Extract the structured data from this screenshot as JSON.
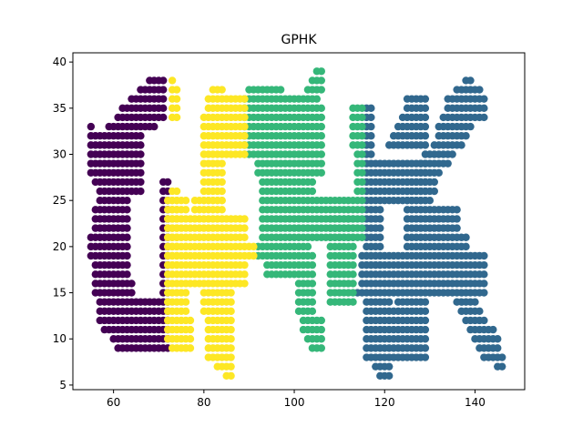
{
  "chart_data": {
    "type": "scatter",
    "title": "GPHK",
    "xlabel": "",
    "ylabel": "",
    "xlim": [
      51,
      151
    ],
    "ylim": [
      4.5,
      41
    ],
    "xticks": [
      60,
      80,
      100,
      120,
      140
    ],
    "yticks": [
      5,
      10,
      15,
      20,
      25,
      30,
      35,
      40
    ],
    "grid": false,
    "series": [
      {
        "color": "#440154",
        "rects": [
          [
            68,
            71,
            38,
            38
          ],
          [
            66,
            71,
            37,
            37
          ],
          [
            64,
            71,
            36,
            36
          ],
          [
            62,
            71,
            35,
            35
          ],
          [
            61,
            71,
            34,
            34
          ],
          [
            59,
            69,
            33,
            33
          ],
          [
            55,
            55,
            33,
            33
          ],
          [
            55,
            66,
            28,
            32
          ],
          [
            56,
            66,
            27,
            27
          ],
          [
            57,
            66,
            26,
            26
          ],
          [
            57,
            63,
            25,
            25
          ],
          [
            56,
            63,
            22,
            24
          ],
          [
            55,
            63,
            19,
            21
          ],
          [
            56,
            63,
            17,
            18
          ],
          [
            56,
            64,
            15,
            16
          ],
          [
            57,
            72,
            13,
            14
          ],
          [
            57,
            72,
            12,
            12
          ],
          [
            58,
            72,
            11,
            11
          ],
          [
            60,
            72,
            10,
            10
          ],
          [
            61,
            72,
            9,
            9
          ],
          [
            71,
            72,
            15,
            27
          ]
        ]
      },
      {
        "color": "#31688e",
        "rects": [
          [
            125,
            129,
            35,
            36
          ],
          [
            124,
            129,
            34,
            34
          ],
          [
            123,
            129,
            33,
            33
          ],
          [
            122,
            129,
            32,
            32
          ],
          [
            121,
            129,
            31,
            31
          ],
          [
            116,
            117,
            30,
            35
          ],
          [
            116,
            129,
            25,
            29
          ],
          [
            116,
            119,
            18,
            24
          ],
          [
            115,
            142,
            18,
            19
          ],
          [
            125,
            136,
            22,
            24
          ],
          [
            125,
            138,
            20,
            21
          ],
          [
            115,
            142,
            16,
            17
          ],
          [
            114,
            142,
            15,
            15
          ],
          [
            116,
            121,
            14,
            14
          ],
          [
            116,
            122,
            8,
            13
          ],
          [
            118,
            121,
            7,
            7
          ],
          [
            119,
            121,
            6,
            6
          ],
          [
            123,
            129,
            8,
            14
          ],
          [
            138,
            139,
            38,
            38
          ],
          [
            136,
            141,
            37,
            37
          ],
          [
            134,
            142,
            35,
            36
          ],
          [
            133,
            142,
            34,
            34
          ],
          [
            132,
            139,
            33,
            33
          ],
          [
            132,
            138,
            32,
            32
          ],
          [
            131,
            137,
            31,
            31
          ],
          [
            129,
            135,
            30,
            30
          ],
          [
            128,
            134,
            29,
            29
          ],
          [
            127,
            132,
            28,
            28
          ],
          [
            125,
            131,
            26,
            27
          ],
          [
            125,
            130,
            25,
            25
          ],
          [
            136,
            140,
            14,
            14
          ],
          [
            137,
            141,
            13,
            13
          ],
          [
            138,
            142,
            12,
            12
          ],
          [
            139,
            144,
            11,
            11
          ],
          [
            140,
            145,
            10,
            10
          ],
          [
            141,
            145,
            9,
            9
          ],
          [
            142,
            146,
            8,
            8
          ],
          [
            145,
            146,
            7,
            7
          ]
        ]
      },
      {
        "color": "#35b779",
        "rects": [
          [
            105,
            106,
            39,
            39
          ],
          [
            104,
            106,
            38,
            38
          ],
          [
            103,
            106,
            37,
            37
          ],
          [
            90,
            97,
            37,
            37
          ],
          [
            89,
            105,
            36,
            36
          ],
          [
            89,
            106,
            30,
            35
          ],
          [
            92,
            106,
            28,
            29
          ],
          [
            93,
            104,
            26,
            27
          ],
          [
            93,
            115,
            21,
            25
          ],
          [
            113,
            115,
            31,
            35
          ],
          [
            114,
            115,
            26,
            30
          ],
          [
            92,
            103,
            20,
            20
          ],
          [
            92,
            104,
            19,
            19
          ],
          [
            94,
            104,
            17,
            18
          ],
          [
            101,
            104,
            13,
            16
          ],
          [
            102,
            106,
            11,
            12
          ],
          [
            103,
            106,
            10,
            10
          ],
          [
            104,
            106,
            9,
            9
          ],
          [
            108,
            113,
            14,
            23
          ]
        ]
      },
      {
        "color": "#fde725",
        "rects": [
          [
            73,
            73,
            38,
            38
          ],
          [
            73,
            74,
            34,
            37
          ],
          [
            82,
            84,
            37,
            37
          ],
          [
            81,
            89,
            35,
            36
          ],
          [
            80,
            89,
            30,
            34
          ],
          [
            80,
            84,
            25,
            29
          ],
          [
            73,
            74,
            18,
            26
          ],
          [
            72,
            76,
            13,
            25
          ],
          [
            72,
            77,
            10,
            12
          ],
          [
            73,
            77,
            9,
            9
          ],
          [
            76,
            76,
            9,
            9
          ],
          [
            78,
            84,
            24,
            25
          ],
          [
            77,
            89,
            21,
            23
          ],
          [
            76,
            91,
            19,
            20
          ],
          [
            77,
            89,
            16,
            18
          ],
          [
            80,
            86,
            13,
            15
          ],
          [
            81,
            86,
            8,
            12
          ],
          [
            83,
            86,
            7,
            7
          ],
          [
            85,
            86,
            6,
            6
          ]
        ]
      }
    ]
  }
}
